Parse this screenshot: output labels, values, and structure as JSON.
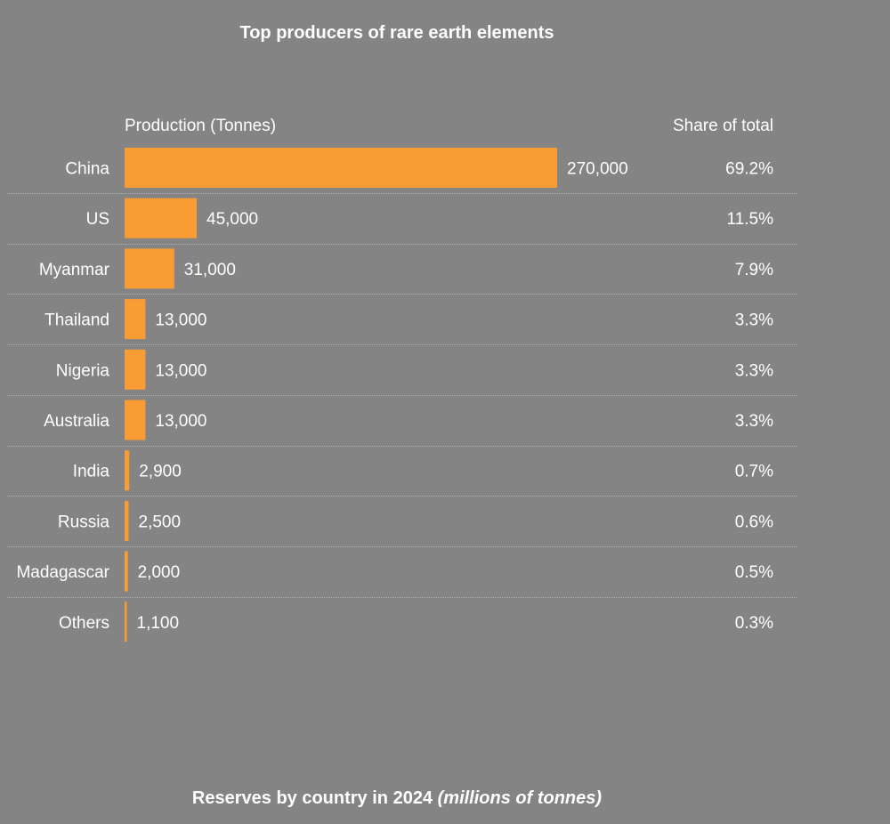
{
  "title": "Top producers of rare earth elements",
  "headers": {
    "production": "Production (Tonnes)",
    "share": "Share of total"
  },
  "footer": {
    "main": "Reserves by country in 2024",
    "unit": "(millions of tonnes)"
  },
  "colors": {
    "bar": "#f99c33",
    "background": "#858484",
    "text": "#ffffff",
    "separator": "#b0b0b0"
  },
  "chart_data": {
    "type": "bar",
    "orientation": "horizontal",
    "title": "Top producers of rare earth elements",
    "xlabel": "Production (Tonnes)",
    "categories": [
      "China",
      "US",
      "Myanmar",
      "Thailand",
      "Nigeria",
      "Australia",
      "India",
      "Russia",
      "Madagascar",
      "Others"
    ],
    "values": [
      270000,
      45000,
      31000,
      13000,
      13000,
      13000,
      2900,
      2500,
      2000,
      1100
    ],
    "value_labels": [
      "270,000",
      "45,000",
      "31,000",
      "13,000",
      "13,000",
      "13,000",
      "2,900",
      "2,500",
      "2,000",
      "1,100"
    ],
    "share_labels": [
      "69.2%",
      "11.5%",
      "7.9%",
      "3.3%",
      "3.3%",
      "3.3%",
      "0.7%",
      "0.6%",
      "0.5%",
      "0.3%"
    ],
    "xlim": [
      0,
      270000
    ],
    "grid": false
  }
}
